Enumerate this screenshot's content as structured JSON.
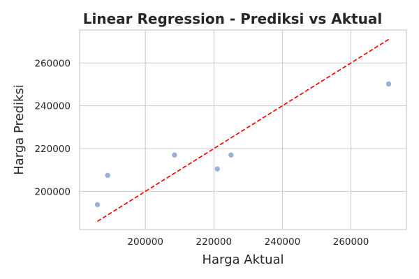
{
  "chart_data": {
    "type": "scatter",
    "title": "Linear Regression - Prediksi vs Aktual",
    "xlabel": "Harga Aktual",
    "ylabel": "Harga Prediksi",
    "xlim": [
      180800,
      276200
    ],
    "ylim": [
      182200,
      275400
    ],
    "xticks": [
      200000,
      220000,
      240000,
      260000
    ],
    "xtick_labels": [
      "200000",
      "220000",
      "240000",
      "260000"
    ],
    "yticks": [
      200000,
      220000,
      240000,
      260000
    ],
    "ytick_labels": [
      "200000",
      "220000",
      "240000",
      "260000"
    ],
    "grid": true,
    "series": [
      {
        "points": [
          {
            "x": 186000,
            "y": 193800
          },
          {
            "x": 189000,
            "y": 207500
          },
          {
            "x": 208500,
            "y": 217000
          },
          {
            "x": 221000,
            "y": 210500
          },
          {
            "x": 225000,
            "y": 217000
          },
          {
            "x": 271000,
            "y": 250200
          }
        ],
        "color": "#6f8fc4"
      }
    ],
    "reference_line": {
      "style": "dashed",
      "color": "#ff0000",
      "from": [
        186000,
        186000
      ],
      "to": [
        271000,
        271000
      ]
    }
  }
}
